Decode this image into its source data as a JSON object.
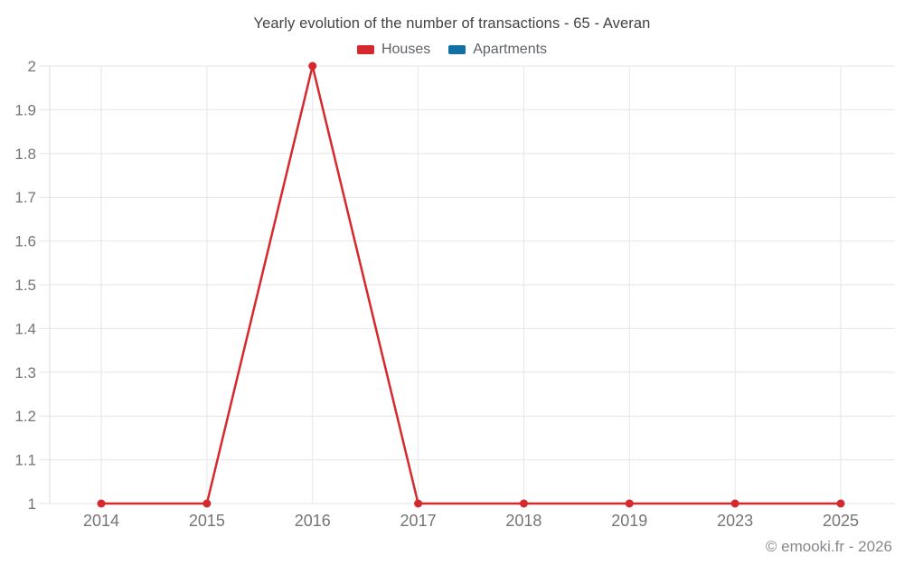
{
  "title": "Yearly evolution of the number of transactions - 65 - Averan",
  "legend": [
    {
      "label": "Houses",
      "color": "#d5292d"
    },
    {
      "label": "Apartments",
      "color": "#1270a5"
    }
  ],
  "footer": {
    "copyright": "© emooki.fr - 2026"
  },
  "chart_data": {
    "type": "line",
    "title": "Yearly evolution of the number of transactions - 65 - Averan",
    "x": [
      "2014",
      "2015",
      "2016",
      "2017",
      "2018",
      "2019",
      "2023",
      "2025"
    ],
    "series": [
      {
        "name": "Houses",
        "color": "#d5292d",
        "values": [
          1,
          1,
          2,
          1,
          1,
          1,
          1,
          1
        ]
      },
      {
        "name": "Apartments",
        "color": "#1270a5",
        "values": []
      }
    ],
    "xlabel": "",
    "ylabel": "",
    "ylim": [
      1,
      2
    ],
    "yticks": [
      1,
      1.1,
      1.2,
      1.3,
      1.4,
      1.5,
      1.6,
      1.7,
      1.8,
      1.9,
      2
    ],
    "ytick_labels": [
      "1",
      "1.1",
      "1.2",
      "1.3",
      "1.4",
      "1.5",
      "1.6",
      "1.7",
      "1.8",
      "1.9",
      "2"
    ],
    "grid": true,
    "legend_position": "top",
    "marker": "circle"
  },
  "colors": {
    "grid": "#e6e6e6",
    "axis": "#dcdcdc",
    "tick_label": "#757575",
    "title_text": "#424242",
    "legend_text": "#5f6368",
    "footer_text": "#86898c"
  }
}
